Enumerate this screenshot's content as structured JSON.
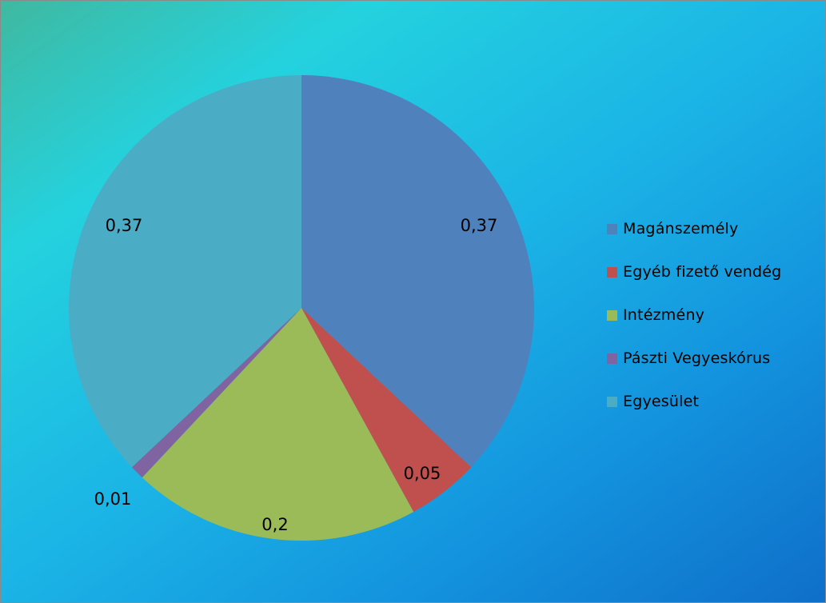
{
  "chart_data": {
    "type": "pie",
    "categories": [
      "Magánszemély",
      "Egyéb fizető vendég",
      "Intézmény",
      "Pászti Vegyeskórus",
      "Egyesület"
    ],
    "values": [
      0.37,
      0.05,
      0.2,
      0.01,
      0.37
    ],
    "value_labels": [
      "0,37",
      "0,05",
      "0,2",
      "0,01",
      "0,37"
    ],
    "colors": [
      "#4f81bd",
      "#c0504d",
      "#9bbb59",
      "#8064a2",
      "#4bacc6"
    ],
    "start_angle": "12 o'clock, clockwise",
    "legend": {
      "position": "right",
      "items": [
        "Magánszemély",
        "Egyéb fizető vendég",
        "Intézmény",
        "Pászti Vegyeskórus",
        "Egyesület"
      ]
    },
    "title": ""
  }
}
